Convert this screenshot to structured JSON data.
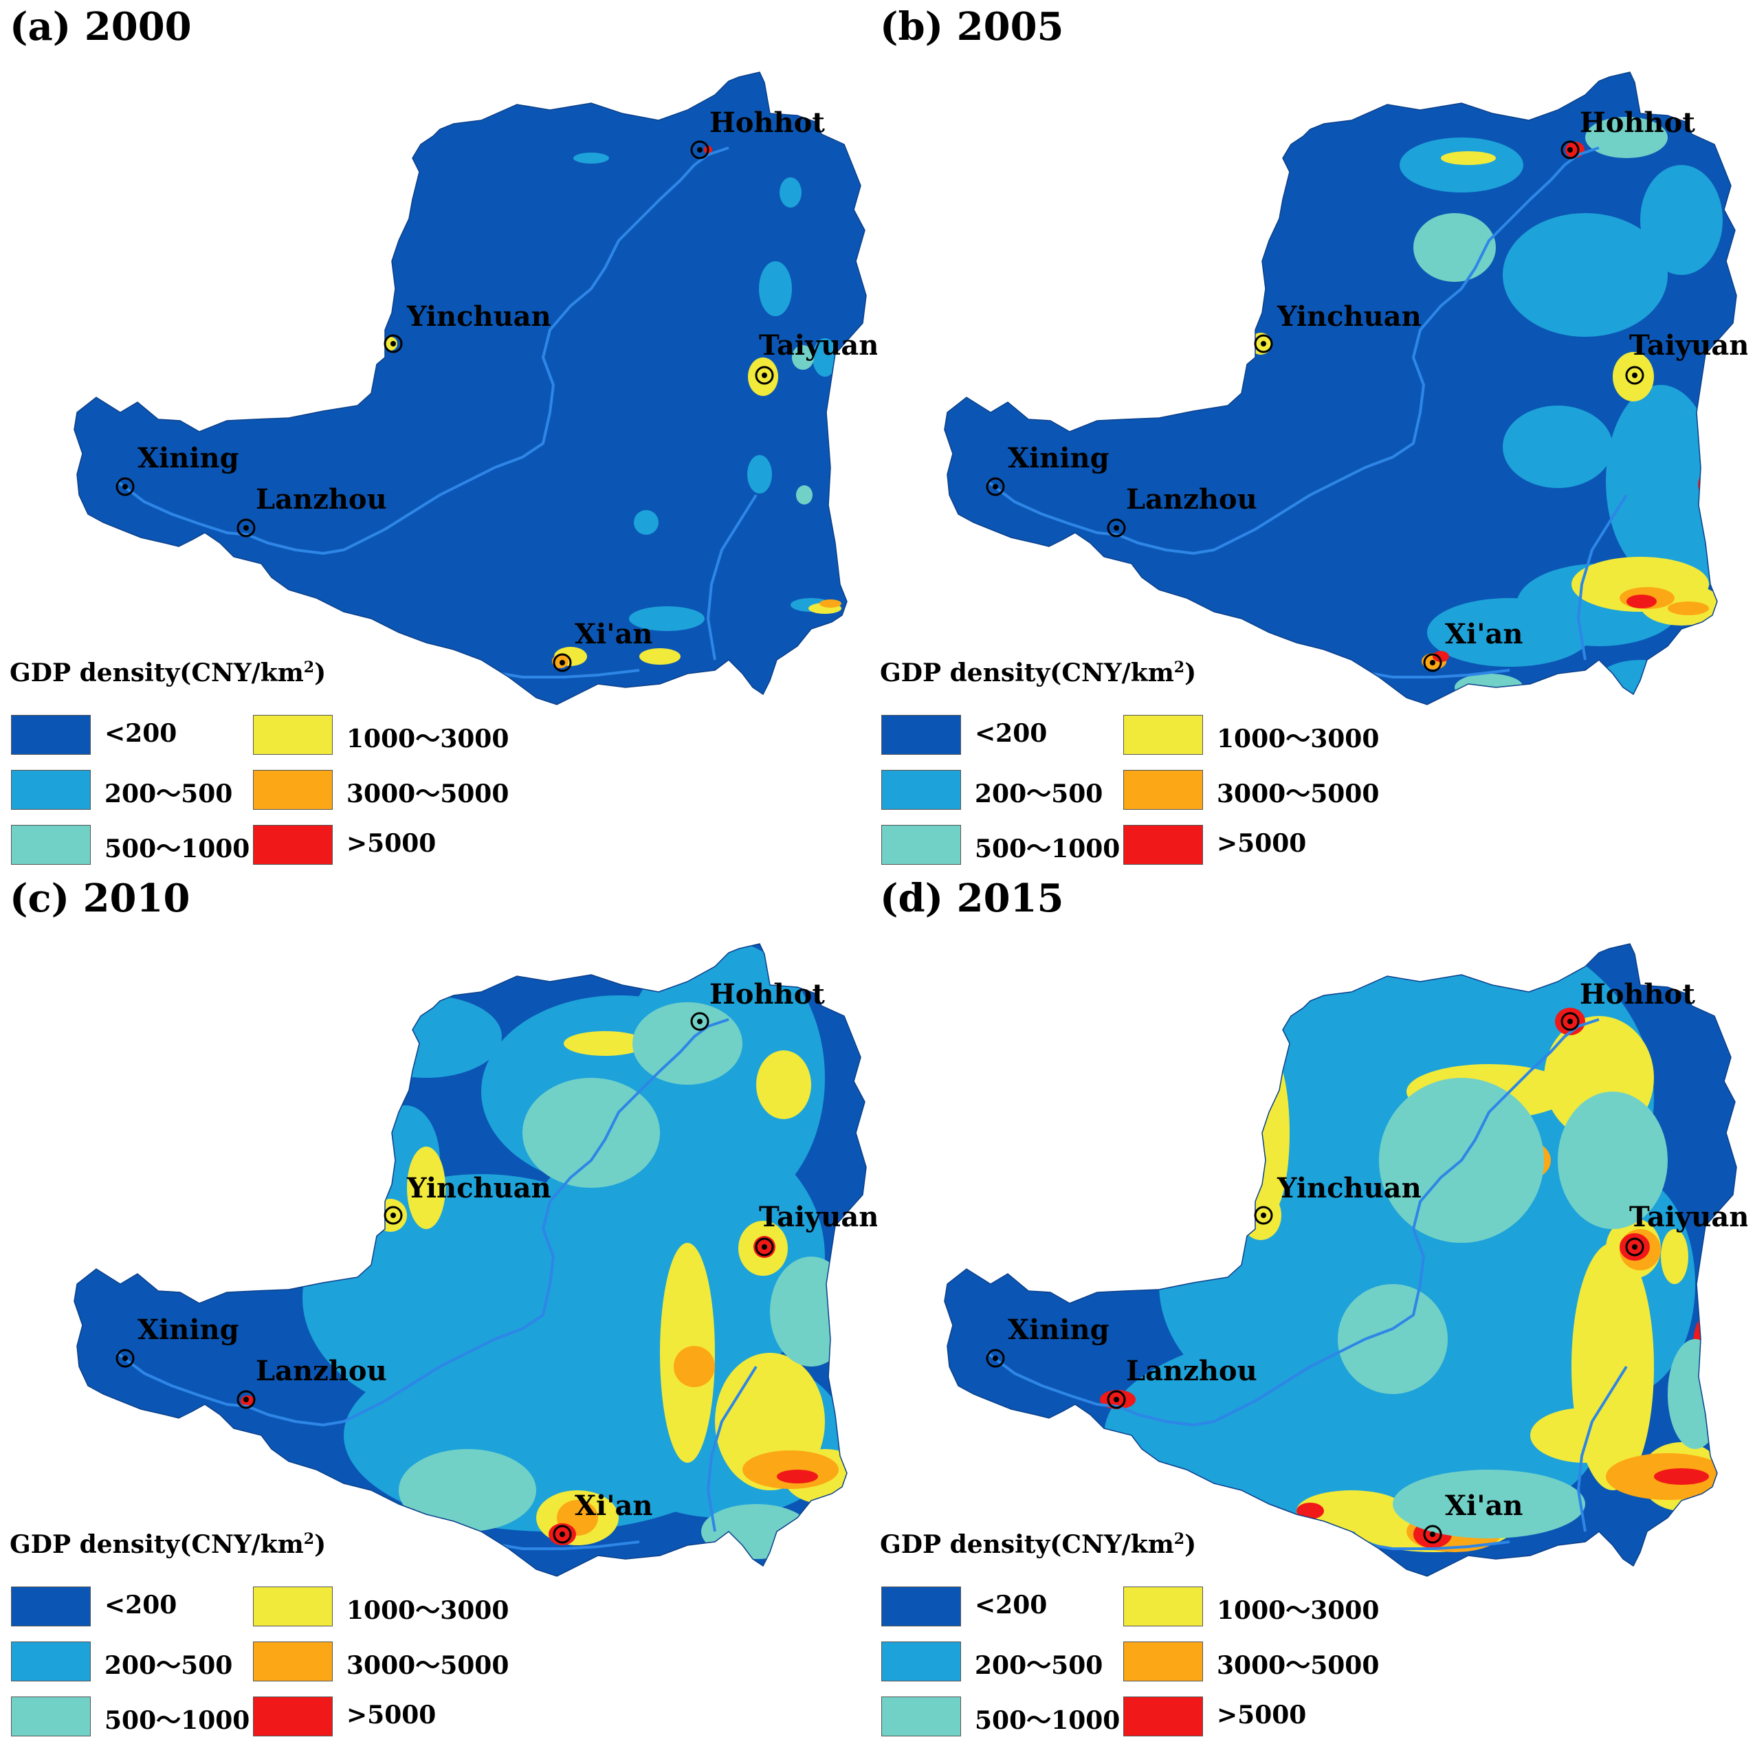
{
  "legend": {
    "title": "GDP density(CNY/km",
    "title_sup": "2",
    "title_close": ")",
    "classes": [
      {
        "label": "<200",
        "color": "#0b56b4"
      },
      {
        "label": "200～500",
        "color": "#1ea2da"
      },
      {
        "label": "500～1000",
        "color": "#72d1c7"
      },
      {
        "label": "1000～3000",
        "color": "#f2ea3a"
      },
      {
        "label": "3000～5000",
        "color": "#fca716"
      },
      {
        "label": ">5000",
        "color": "#f01818"
      }
    ]
  },
  "cities": [
    "Hohhot",
    "Yinchuan",
    "Taiyuan",
    "Xining",
    "Lanzhou",
    "Xi'an"
  ],
  "panels": [
    {
      "title": "(a) 2000"
    },
    {
      "title": "(b) 2005"
    },
    {
      "title": "(c) 2010"
    },
    {
      "title": "(d) 2015"
    }
  ],
  "river_color": "#2e86e6"
}
